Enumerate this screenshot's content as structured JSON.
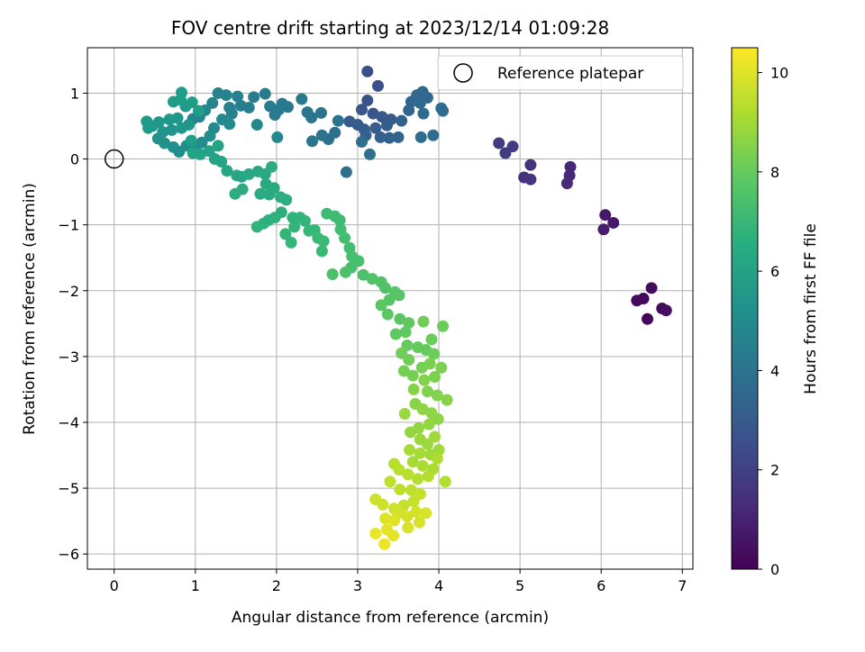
{
  "chart_data": {
    "type": "scatter",
    "title": "FOV centre drift starting at 2023/12/14 01:09:28",
    "xlabel": "Angular distance from reference (arcmin)",
    "ylabel": "Rotation from reference (arcmin)",
    "xlim": [
      -0.33,
      7.13
    ],
    "ylim": [
      -6.23,
      1.69
    ],
    "xticks": [
      0,
      1,
      2,
      3,
      4,
      5,
      6,
      7
    ],
    "yticks": [
      1,
      0,
      -1,
      -2,
      -3,
      -4,
      -5,
      -6
    ],
    "grid": true,
    "legend_placement": "top-right",
    "legend_entries": [
      {
        "label": "Reference platepar",
        "marker": "open-circle"
      }
    ],
    "reference_point": {
      "x": 0,
      "y": 0
    },
    "colorbar": {
      "label": "Hours from first FF file",
      "range": [
        0,
        10.5
      ],
      "ticks": [
        0,
        2,
        4,
        6,
        8,
        10
      ],
      "colormap": "viridis"
    },
    "points": [
      {
        "x": 6.57,
        "y": -2.43,
        "c": 0.1
      },
      {
        "x": 6.44,
        "y": -2.15,
        "c": 0.2
      },
      {
        "x": 6.52,
        "y": -2.12,
        "c": 0.2
      },
      {
        "x": 6.62,
        "y": -1.96,
        "c": 0.3
      },
      {
        "x": 6.75,
        "y": -2.27,
        "c": 0.3
      },
      {
        "x": 6.8,
        "y": -2.3,
        "c": 0.4
      },
      {
        "x": 6.05,
        "y": -0.85,
        "c": 0.7
      },
      {
        "x": 6.15,
        "y": -0.97,
        "c": 0.7
      },
      {
        "x": 6.03,
        "y": -1.07,
        "c": 0.8
      },
      {
        "x": 5.62,
        "y": -0.12,
        "c": 1.2
      },
      {
        "x": 5.61,
        "y": -0.25,
        "c": 1.2
      },
      {
        "x": 5.58,
        "y": -0.37,
        "c": 1.3
      },
      {
        "x": 5.13,
        "y": -0.09,
        "c": 1.5
      },
      {
        "x": 5.05,
        "y": -0.28,
        "c": 1.5
      },
      {
        "x": 5.13,
        "y": -0.31,
        "c": 1.6
      },
      {
        "x": 4.74,
        "y": 0.24,
        "c": 1.8
      },
      {
        "x": 4.91,
        "y": 0.19,
        "c": 1.8
      },
      {
        "x": 4.82,
        "y": 0.09,
        "c": 1.9
      },
      {
        "x": 3.12,
        "y": 1.33,
        "c": 2.5
      },
      {
        "x": 3.25,
        "y": 1.11,
        "c": 2.6
      },
      {
        "x": 3.12,
        "y": 0.89,
        "c": 2.7
      },
      {
        "x": 3.05,
        "y": 0.75,
        "c": 2.8
      },
      {
        "x": 3.19,
        "y": 0.69,
        "c": 2.8
      },
      {
        "x": 3.3,
        "y": 0.64,
        "c": 2.9
      },
      {
        "x": 3.41,
        "y": 0.6,
        "c": 2.9
      },
      {
        "x": 3.0,
        "y": 0.52,
        "c": 3.0
      },
      {
        "x": 2.9,
        "y": 0.57,
        "c": 3.0
      },
      {
        "x": 3.08,
        "y": 0.45,
        "c": 3.1
      },
      {
        "x": 3.22,
        "y": 0.47,
        "c": 3.1
      },
      {
        "x": 3.36,
        "y": 0.51,
        "c": 3.1
      },
      {
        "x": 3.1,
        "y": 0.36,
        "c": 3.2
      },
      {
        "x": 3.28,
        "y": 0.33,
        "c": 3.2
      },
      {
        "x": 3.39,
        "y": 0.32,
        "c": 3.3
      },
      {
        "x": 3.5,
        "y": 0.33,
        "c": 3.3
      },
      {
        "x": 3.54,
        "y": 0.58,
        "c": 3.3
      },
      {
        "x": 3.63,
        "y": 0.74,
        "c": 3.4
      },
      {
        "x": 3.66,
        "y": 0.87,
        "c": 3.4
      },
      {
        "x": 3.73,
        "y": 0.97,
        "c": 3.5
      },
      {
        "x": 3.8,
        "y": 1.02,
        "c": 3.5
      },
      {
        "x": 3.86,
        "y": 0.93,
        "c": 3.5
      },
      {
        "x": 3.77,
        "y": 0.85,
        "c": 3.6
      },
      {
        "x": 3.81,
        "y": 0.69,
        "c": 3.6
      },
      {
        "x": 4.03,
        "y": 0.77,
        "c": 3.6
      },
      {
        "x": 4.05,
        "y": 0.73,
        "c": 3.7
      },
      {
        "x": 3.93,
        "y": 0.36,
        "c": 3.7
      },
      {
        "x": 3.78,
        "y": 0.33,
        "c": 3.7
      },
      {
        "x": 3.15,
        "y": 0.07,
        "c": 3.8
      },
      {
        "x": 3.05,
        "y": 0.26,
        "c": 3.8
      },
      {
        "x": 2.86,
        "y": -0.2,
        "c": 3.8
      },
      {
        "x": 2.72,
        "y": 0.4,
        "c": 3.9
      },
      {
        "x": 2.64,
        "y": 0.3,
        "c": 3.9
      },
      {
        "x": 2.56,
        "y": 0.36,
        "c": 4.0
      },
      {
        "x": 2.44,
        "y": 0.27,
        "c": 4.0
      },
      {
        "x": 2.76,
        "y": 0.58,
        "c": 4.0
      },
      {
        "x": 2.55,
        "y": 0.7,
        "c": 4.1
      },
      {
        "x": 2.43,
        "y": 0.63,
        "c": 4.1
      },
      {
        "x": 2.38,
        "y": 0.71,
        "c": 4.1
      },
      {
        "x": 2.31,
        "y": 0.91,
        "c": 4.2
      },
      {
        "x": 2.14,
        "y": 0.79,
        "c": 4.2
      },
      {
        "x": 2.07,
        "y": 0.84,
        "c": 4.3
      },
      {
        "x": 2.03,
        "y": 0.75,
        "c": 4.3
      },
      {
        "x": 1.98,
        "y": 0.67,
        "c": 4.3
      },
      {
        "x": 1.92,
        "y": 0.8,
        "c": 4.4
      },
      {
        "x": 1.86,
        "y": 0.99,
        "c": 4.4
      },
      {
        "x": 1.72,
        "y": 0.94,
        "c": 4.4
      },
      {
        "x": 1.66,
        "y": 0.78,
        "c": 4.5
      },
      {
        "x": 1.56,
        "y": 0.81,
        "c": 4.5
      },
      {
        "x": 1.52,
        "y": 0.95,
        "c": 4.6
      },
      {
        "x": 1.45,
        "y": 0.69,
        "c": 4.6
      },
      {
        "x": 1.42,
        "y": 0.78,
        "c": 4.6
      },
      {
        "x": 1.38,
        "y": 0.97,
        "c": 4.7
      },
      {
        "x": 1.28,
        "y": 1.0,
        "c": 4.7
      },
      {
        "x": 1.21,
        "y": 0.85,
        "c": 4.7
      },
      {
        "x": 1.12,
        "y": 0.74,
        "c": 4.8
      },
      {
        "x": 1.05,
        "y": 0.64,
        "c": 4.8
      },
      {
        "x": 0.97,
        "y": 0.61,
        "c": 4.8
      },
      {
        "x": 1.76,
        "y": 0.52,
        "c": 4.9
      },
      {
        "x": 2.01,
        "y": 0.33,
        "c": 4.9
      },
      {
        "x": 1.33,
        "y": 0.6,
        "c": 5.0
      },
      {
        "x": 1.42,
        "y": 0.53,
        "c": 5.0
      },
      {
        "x": 1.23,
        "y": 0.47,
        "c": 5.0
      },
      {
        "x": 1.18,
        "y": 0.35,
        "c": 5.1
      },
      {
        "x": 1.08,
        "y": 0.25,
        "c": 5.1
      },
      {
        "x": 1.0,
        "y": 0.17,
        "c": 5.2
      },
      {
        "x": 0.89,
        "y": 0.2,
        "c": 5.2
      },
      {
        "x": 0.8,
        "y": 0.11,
        "c": 5.2
      },
      {
        "x": 0.73,
        "y": 0.18,
        "c": 5.3
      },
      {
        "x": 0.62,
        "y": 0.24,
        "c": 5.3
      },
      {
        "x": 0.54,
        "y": 0.31,
        "c": 5.3
      },
      {
        "x": 0.6,
        "y": 0.41,
        "c": 5.4
      },
      {
        "x": 0.71,
        "y": 0.44,
        "c": 5.4
      },
      {
        "x": 0.83,
        "y": 0.47,
        "c": 5.5
      },
      {
        "x": 0.92,
        "y": 0.52,
        "c": 5.5
      },
      {
        "x": 0.78,
        "y": 0.62,
        "c": 5.5
      },
      {
        "x": 0.68,
        "y": 0.6,
        "c": 5.6
      },
      {
        "x": 0.55,
        "y": 0.56,
        "c": 5.6
      },
      {
        "x": 0.47,
        "y": 0.5,
        "c": 5.6
      },
      {
        "x": 0.4,
        "y": 0.57,
        "c": 5.7
      },
      {
        "x": 0.42,
        "y": 0.47,
        "c": 5.7
      },
      {
        "x": 0.88,
        "y": 0.8,
        "c": 5.7
      },
      {
        "x": 0.82,
        "y": 0.9,
        "c": 5.8
      },
      {
        "x": 0.73,
        "y": 0.87,
        "c": 5.8
      },
      {
        "x": 0.83,
        "y": 1.01,
        "c": 5.8
      },
      {
        "x": 0.96,
        "y": 0.86,
        "c": 5.9
      },
      {
        "x": 1.04,
        "y": 0.73,
        "c": 5.9
      },
      {
        "x": 0.95,
        "y": 0.28,
        "c": 5.9
      },
      {
        "x": 1.06,
        "y": 0.07,
        "c": 6.0
      },
      {
        "x": 0.97,
        "y": 0.09,
        "c": 6.0
      },
      {
        "x": 1.17,
        "y": 0.12,
        "c": 6.0
      },
      {
        "x": 1.24,
        "y": 0.0,
        "c": 6.1
      },
      {
        "x": 1.32,
        "y": -0.04,
        "c": 6.1
      },
      {
        "x": 1.28,
        "y": 0.2,
        "c": 6.1
      },
      {
        "x": 1.39,
        "y": -0.18,
        "c": 6.2
      },
      {
        "x": 1.51,
        "y": -0.25,
        "c": 6.2
      },
      {
        "x": 1.57,
        "y": -0.27,
        "c": 6.2
      },
      {
        "x": 1.66,
        "y": -0.23,
        "c": 6.3
      },
      {
        "x": 1.77,
        "y": -0.19,
        "c": 6.3
      },
      {
        "x": 1.86,
        "y": -0.23,
        "c": 6.3
      },
      {
        "x": 1.87,
        "y": -0.38,
        "c": 6.4
      },
      {
        "x": 1.97,
        "y": -0.44,
        "c": 6.4
      },
      {
        "x": 1.91,
        "y": -0.54,
        "c": 6.4
      },
      {
        "x": 1.8,
        "y": -0.53,
        "c": 6.5
      },
      {
        "x": 1.58,
        "y": -0.46,
        "c": 6.5
      },
      {
        "x": 1.49,
        "y": -0.53,
        "c": 6.5
      },
      {
        "x": 1.94,
        "y": -0.12,
        "c": 6.5
      },
      {
        "x": 2.05,
        "y": -0.58,
        "c": 6.6
      },
      {
        "x": 2.12,
        "y": -0.62,
        "c": 6.6
      },
      {
        "x": 2.06,
        "y": -0.81,
        "c": 6.6
      },
      {
        "x": 1.98,
        "y": -0.89,
        "c": 6.7
      },
      {
        "x": 1.9,
        "y": -0.93,
        "c": 6.7
      },
      {
        "x": 1.84,
        "y": -0.98,
        "c": 6.7
      },
      {
        "x": 1.76,
        "y": -1.03,
        "c": 6.8
      },
      {
        "x": 2.2,
        "y": -0.89,
        "c": 6.8
      },
      {
        "x": 2.29,
        "y": -0.89,
        "c": 6.8
      },
      {
        "x": 2.35,
        "y": -0.94,
        "c": 6.9
      },
      {
        "x": 2.22,
        "y": -1.03,
        "c": 6.9
      },
      {
        "x": 2.11,
        "y": -1.14,
        "c": 6.9
      },
      {
        "x": 2.18,
        "y": -1.27,
        "c": 7.0
      },
      {
        "x": 2.4,
        "y": -1.09,
        "c": 7.0
      },
      {
        "x": 2.47,
        "y": -1.08,
        "c": 7.0
      },
      {
        "x": 2.51,
        "y": -1.2,
        "c": 7.1
      },
      {
        "x": 2.58,
        "y": -1.25,
        "c": 7.1
      },
      {
        "x": 2.56,
        "y": -1.4,
        "c": 7.1
      },
      {
        "x": 2.62,
        "y": -0.83,
        "c": 7.2
      },
      {
        "x": 2.72,
        "y": -0.87,
        "c": 7.2
      },
      {
        "x": 2.78,
        "y": -0.93,
        "c": 7.2
      },
      {
        "x": 2.79,
        "y": -1.07,
        "c": 7.3
      },
      {
        "x": 2.84,
        "y": -1.2,
        "c": 7.3
      },
      {
        "x": 2.9,
        "y": -1.35,
        "c": 7.3
      },
      {
        "x": 2.93,
        "y": -1.48,
        "c": 7.4
      },
      {
        "x": 3.01,
        "y": -1.55,
        "c": 7.4
      },
      {
        "x": 2.92,
        "y": -1.65,
        "c": 7.4
      },
      {
        "x": 2.85,
        "y": -1.72,
        "c": 7.5
      },
      {
        "x": 2.69,
        "y": -1.75,
        "c": 7.5
      },
      {
        "x": 3.07,
        "y": -1.76,
        "c": 7.5
      },
      {
        "x": 3.18,
        "y": -1.82,
        "c": 7.6
      },
      {
        "x": 3.29,
        "y": -1.87,
        "c": 7.6
      },
      {
        "x": 3.34,
        "y": -1.96,
        "c": 7.6
      },
      {
        "x": 3.46,
        "y": -2.02,
        "c": 7.7
      },
      {
        "x": 3.51,
        "y": -2.07,
        "c": 7.7
      },
      {
        "x": 3.39,
        "y": -2.14,
        "c": 7.7
      },
      {
        "x": 3.29,
        "y": -2.22,
        "c": 7.8
      },
      {
        "x": 3.37,
        "y": -2.36,
        "c": 7.8
      },
      {
        "x": 3.52,
        "y": -2.43,
        "c": 7.8
      },
      {
        "x": 3.63,
        "y": -2.49,
        "c": 7.9
      },
      {
        "x": 3.59,
        "y": -2.63,
        "c": 7.9
      },
      {
        "x": 3.47,
        "y": -2.66,
        "c": 7.9
      },
      {
        "x": 3.61,
        "y": -2.83,
        "c": 8.0
      },
      {
        "x": 3.74,
        "y": -2.86,
        "c": 8.0
      },
      {
        "x": 3.84,
        "y": -2.9,
        "c": 8.0
      },
      {
        "x": 3.94,
        "y": -2.96,
        "c": 8.1
      },
      {
        "x": 3.91,
        "y": -2.74,
        "c": 8.1
      },
      {
        "x": 4.05,
        "y": -2.54,
        "c": 8.1
      },
      {
        "x": 3.81,
        "y": -2.47,
        "c": 8.2
      },
      {
        "x": 3.54,
        "y": -2.95,
        "c": 8.2
      },
      {
        "x": 3.63,
        "y": -3.05,
        "c": 8.2
      },
      {
        "x": 3.57,
        "y": -3.22,
        "c": 8.3
      },
      {
        "x": 3.68,
        "y": -3.29,
        "c": 8.3
      },
      {
        "x": 3.79,
        "y": -3.17,
        "c": 8.3
      },
      {
        "x": 3.89,
        "y": -3.11,
        "c": 8.4
      },
      {
        "x": 4.03,
        "y": -3.17,
        "c": 8.4
      },
      {
        "x": 3.95,
        "y": -3.31,
        "c": 8.4
      },
      {
        "x": 3.82,
        "y": -3.36,
        "c": 8.5
      },
      {
        "x": 3.86,
        "y": -3.53,
        "c": 8.5
      },
      {
        "x": 3.98,
        "y": -3.59,
        "c": 8.5
      },
      {
        "x": 4.1,
        "y": -3.66,
        "c": 8.6
      },
      {
        "x": 3.69,
        "y": -3.5,
        "c": 8.6
      },
      {
        "x": 3.71,
        "y": -3.72,
        "c": 8.6
      },
      {
        "x": 3.8,
        "y": -3.8,
        "c": 8.7
      },
      {
        "x": 3.91,
        "y": -3.86,
        "c": 8.7
      },
      {
        "x": 3.99,
        "y": -3.95,
        "c": 8.7
      },
      {
        "x": 3.88,
        "y": -4.03,
        "c": 8.8
      },
      {
        "x": 3.75,
        "y": -4.09,
        "c": 8.8
      },
      {
        "x": 3.65,
        "y": -4.15,
        "c": 8.8
      },
      {
        "x": 3.58,
        "y": -3.87,
        "c": 8.9
      },
      {
        "x": 3.77,
        "y": -4.26,
        "c": 8.9
      },
      {
        "x": 3.86,
        "y": -4.33,
        "c": 8.9
      },
      {
        "x": 3.95,
        "y": -4.22,
        "c": 9.0
      },
      {
        "x": 4.0,
        "y": -4.42,
        "c": 9.0
      },
      {
        "x": 3.9,
        "y": -4.49,
        "c": 9.0
      },
      {
        "x": 3.77,
        "y": -4.47,
        "c": 9.1
      },
      {
        "x": 3.64,
        "y": -4.42,
        "c": 9.1
      },
      {
        "x": 3.68,
        "y": -4.6,
        "c": 9.1
      },
      {
        "x": 3.8,
        "y": -4.66,
        "c": 9.2
      },
      {
        "x": 3.93,
        "y": -4.71,
        "c": 9.2
      },
      {
        "x": 3.98,
        "y": -4.55,
        "c": 9.2
      },
      {
        "x": 4.08,
        "y": -4.9,
        "c": 9.3
      },
      {
        "x": 3.87,
        "y": -4.82,
        "c": 9.3
      },
      {
        "x": 3.74,
        "y": -4.86,
        "c": 9.3
      },
      {
        "x": 3.62,
        "y": -4.79,
        "c": 9.4
      },
      {
        "x": 3.51,
        "y": -4.72,
        "c": 9.4
      },
      {
        "x": 3.45,
        "y": -4.63,
        "c": 9.4
      },
      {
        "x": 3.4,
        "y": -4.9,
        "c": 9.5
      },
      {
        "x": 3.52,
        "y": -5.02,
        "c": 9.5
      },
      {
        "x": 3.66,
        "y": -5.03,
        "c": 9.5
      },
      {
        "x": 3.77,
        "y": -5.09,
        "c": 9.6
      },
      {
        "x": 3.69,
        "y": -5.2,
        "c": 9.6
      },
      {
        "x": 3.57,
        "y": -5.26,
        "c": 9.6
      },
      {
        "x": 3.45,
        "y": -5.31,
        "c": 9.7
      },
      {
        "x": 3.31,
        "y": -5.25,
        "c": 9.7
      },
      {
        "x": 3.22,
        "y": -5.17,
        "c": 9.7
      },
      {
        "x": 3.5,
        "y": -5.38,
        "c": 9.8
      },
      {
        "x": 3.61,
        "y": -5.43,
        "c": 9.8
      },
      {
        "x": 3.72,
        "y": -5.36,
        "c": 9.8
      },
      {
        "x": 3.84,
        "y": -5.38,
        "c": 9.9
      },
      {
        "x": 3.76,
        "y": -5.52,
        "c": 9.9
      },
      {
        "x": 3.62,
        "y": -5.6,
        "c": 9.9
      },
      {
        "x": 3.45,
        "y": -5.49,
        "c": 10.0
      },
      {
        "x": 3.34,
        "y": -5.46,
        "c": 10.0
      },
      {
        "x": 3.36,
        "y": -5.63,
        "c": 10.1
      },
      {
        "x": 3.44,
        "y": -5.72,
        "c": 10.1
      },
      {
        "x": 3.33,
        "y": -5.85,
        "c": 10.2
      },
      {
        "x": 3.22,
        "y": -5.69,
        "c": 10.2
      }
    ]
  }
}
